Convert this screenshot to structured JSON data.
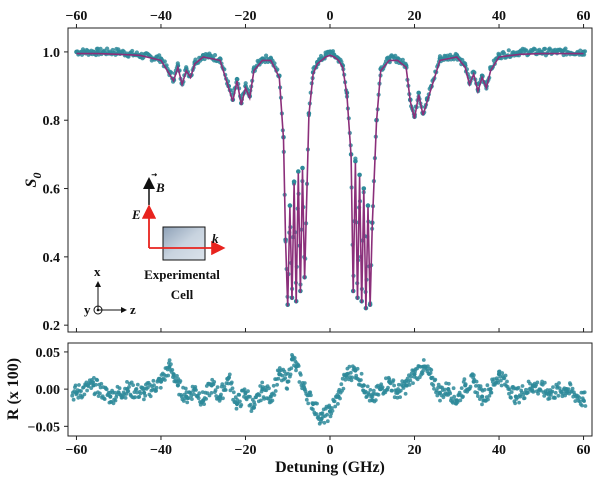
{
  "chart_data": [
    {
      "type": "scatter",
      "panel": "top",
      "ylabel": "S",
      "ylabel_sub": "0",
      "xlim": [
        -62,
        62
      ],
      "ylim": [
        0.18,
        1.07
      ],
      "xticks": [
        -60,
        -40,
        -20,
        0,
        20,
        40,
        60
      ],
      "xtick_labels_top": [
        "−60",
        "−40",
        "−20",
        "0",
        "20",
        "40",
        "60"
      ],
      "yticks": [
        0.2,
        0.4,
        0.6,
        0.8,
        1.0
      ],
      "ytick_labels": [
        "0.2",
        "0.4",
        "0.6",
        "0.8",
        "1.0"
      ],
      "series": [
        {
          "kind": "scatter",
          "color": "#2e8a9a",
          "x": [
            -60,
            -55,
            -50,
            -45,
            -40,
            -38,
            -37,
            -36,
            -35,
            -34,
            -33,
            -32,
            -30,
            -26,
            -24,
            -23,
            -22,
            -21,
            -20,
            -19,
            -18,
            -16,
            -14,
            -12,
            -11,
            -10.5,
            -10,
            -9.5,
            -9,
            -8.5,
            -8,
            -7.5,
            -7,
            -6.5,
            -6,
            -5,
            -4,
            -3,
            -2,
            -1,
            0,
            1,
            2,
            3,
            4,
            5,
            5.5,
            6,
            6.5,
            7,
            7.5,
            8,
            8.5,
            9,
            9.5,
            10,
            11,
            12,
            14,
            16,
            18,
            19,
            20,
            21,
            22,
            23,
            24,
            26,
            30,
            32,
            33,
            34,
            35,
            36,
            37,
            38,
            40,
            45,
            50,
            55,
            60
          ],
          "y": [
            1.0,
            1.0,
            1.0,
            0.99,
            0.98,
            0.94,
            0.92,
            0.96,
            0.91,
            0.95,
            0.93,
            0.97,
            0.99,
            0.98,
            0.9,
            0.86,
            0.92,
            0.85,
            0.9,
            0.87,
            0.95,
            0.98,
            0.98,
            0.93,
            0.75,
            0.45,
            0.26,
            0.55,
            0.28,
            0.62,
            0.27,
            0.65,
            0.3,
            0.66,
            0.34,
            0.82,
            0.94,
            0.97,
            0.98,
            0.99,
            1.0,
            0.99,
            0.98,
            0.96,
            0.88,
            0.7,
            0.3,
            0.68,
            0.28,
            0.64,
            0.27,
            0.6,
            0.25,
            0.55,
            0.26,
            0.5,
            0.8,
            0.95,
            0.98,
            0.98,
            0.96,
            0.86,
            0.81,
            0.88,
            0.82,
            0.86,
            0.9,
            0.98,
            0.99,
            0.96,
            0.91,
            0.94,
            0.89,
            0.93,
            0.9,
            0.95,
            0.99,
            1.0,
            1.0,
            1.0,
            1.0
          ]
        },
        {
          "kind": "line",
          "color": "#8b2f7a",
          "x": [
            -60,
            -55,
            -50,
            -45,
            -40,
            -38,
            -37,
            -36,
            -35,
            -34,
            -33,
            -32,
            -30,
            -26,
            -24,
            -23,
            -22,
            -21,
            -20,
            -19,
            -18,
            -16,
            -14,
            -12,
            -11,
            -10.5,
            -10,
            -9.5,
            -9,
            -8.5,
            -8,
            -7.5,
            -7,
            -6.5,
            -6,
            -5,
            -4,
            -3,
            -2,
            -1,
            0,
            1,
            2,
            3,
            4,
            5,
            5.5,
            6,
            6.5,
            7,
            7.5,
            8,
            8.5,
            9,
            9.5,
            10,
            11,
            12,
            14,
            16,
            18,
            19,
            20,
            21,
            22,
            23,
            24,
            26,
            30,
            32,
            33,
            34,
            35,
            36,
            37,
            38,
            40,
            45,
            50,
            55,
            60
          ],
          "y": [
            0.995,
            0.995,
            0.993,
            0.99,
            0.975,
            0.935,
            0.915,
            0.955,
            0.905,
            0.945,
            0.925,
            0.965,
            0.985,
            0.975,
            0.895,
            0.855,
            0.915,
            0.845,
            0.895,
            0.865,
            0.945,
            0.975,
            0.975,
            0.925,
            0.745,
            0.445,
            0.255,
            0.545,
            0.275,
            0.615,
            0.265,
            0.645,
            0.295,
            0.655,
            0.335,
            0.815,
            0.935,
            0.965,
            0.975,
            0.985,
            0.99,
            0.985,
            0.975,
            0.955,
            0.875,
            0.695,
            0.295,
            0.675,
            0.275,
            0.635,
            0.265,
            0.595,
            0.245,
            0.545,
            0.255,
            0.495,
            0.795,
            0.945,
            0.975,
            0.975,
            0.955,
            0.855,
            0.805,
            0.875,
            0.815,
            0.855,
            0.895,
            0.975,
            0.985,
            0.955,
            0.905,
            0.935,
            0.885,
            0.925,
            0.895,
            0.945,
            0.985,
            0.993,
            0.995,
            0.995,
            0.995
          ]
        }
      ]
    },
    {
      "type": "scatter",
      "panel": "bottom",
      "xlabel": "Detuning (GHz)",
      "ylabel": "R (x 100)",
      "xlim": [
        -62,
        62
      ],
      "ylim": [
        -0.063,
        0.062
      ],
      "xticks": [
        -60,
        -40,
        -20,
        0,
        20,
        40,
        60
      ],
      "xtick_labels": [
        "−60",
        "−40",
        "−20",
        "0",
        "20",
        "40",
        "60"
      ],
      "yticks": [
        -0.05,
        0.0,
        0.05
      ],
      "ytick_labels": [
        "−0.05",
        "0.00",
        "0.05"
      ],
      "series": [
        {
          "kind": "scatter",
          "color": "#2e8a9a",
          "x": [
            -60,
            -56,
            -52,
            -48,
            -44,
            -40,
            -38,
            -37,
            -36,
            -34,
            -32,
            -30,
            -28,
            -26,
            -24,
            -22,
            -20,
            -18,
            -16,
            -14,
            -12,
            -10,
            -9,
            -8,
            -6,
            -4,
            -2,
            0,
            2,
            4,
            6,
            8,
            10,
            12,
            14,
            16,
            18,
            20,
            22,
            24,
            26,
            28,
            30,
            32,
            34,
            36,
            38,
            40,
            44,
            48,
            52,
            56,
            60
          ],
          "y": [
            -0.005,
            0.005,
            -0.01,
            0.0,
            -0.005,
            0.01,
            0.03,
            0.02,
            0.005,
            -0.01,
            0.0,
            -0.015,
            0.005,
            -0.01,
            0.015,
            -0.02,
            -0.005,
            -0.025,
            0.0,
            -0.01,
            0.02,
            0.01,
            0.04,
            0.03,
            0.0,
            -0.02,
            -0.04,
            -0.03,
            -0.01,
            0.02,
            0.025,
            0.005,
            -0.015,
            0.0,
            0.01,
            -0.005,
            0.005,
            0.02,
            0.03,
            0.015,
            -0.005,
            0.0,
            -0.015,
            0.005,
            0.01,
            -0.01,
            0.0,
            0.02,
            -0.01,
            0.005,
            -0.005,
            0.0,
            -0.015
          ]
        }
      ]
    }
  ],
  "inset": {
    "b_label": "B",
    "e_label": "E",
    "k_label": "k",
    "cell_label_line1": "Experimental",
    "cell_label_line2": "Cell",
    "axis_x": "x",
    "axis_y": "y",
    "axis_z": "z",
    "arrow_red": "#e8231e",
    "cell_fill": "#b4c2d2"
  }
}
